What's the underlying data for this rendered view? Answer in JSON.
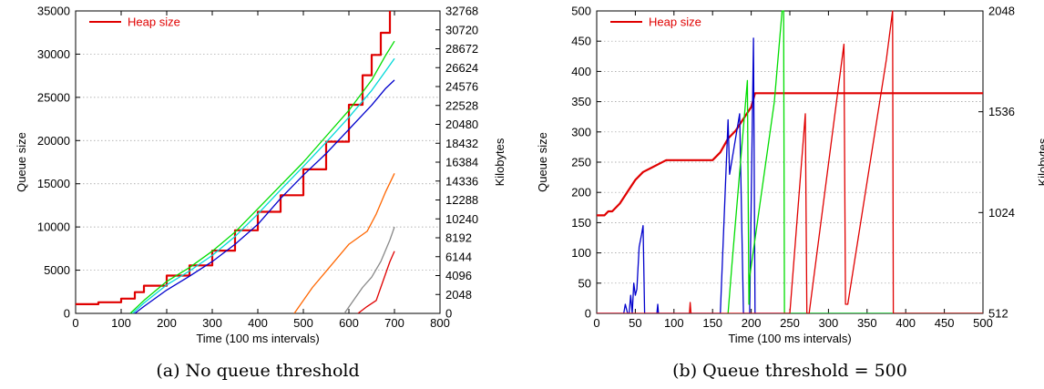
{
  "chart_data": [
    {
      "type": "line",
      "caption": "(a) No queue threshold",
      "xlabel": "Time (100 ms intervals)",
      "ylabel": "Queue size",
      "y2label": "Kilobytes",
      "xlim": [
        0,
        800
      ],
      "ylim": [
        0,
        35000
      ],
      "y2lim": [
        0,
        32768
      ],
      "xticks": [
        "0",
        "100",
        "200",
        "300",
        "400",
        "500",
        "600",
        "700",
        "800"
      ],
      "yticks": [
        "0",
        "5000",
        "10000",
        "15000",
        "20000",
        "25000",
        "30000",
        "35000"
      ],
      "y2ticks": [
        "0",
        "2048",
        "4096",
        "6144",
        "8192",
        "10240",
        "12288",
        "14336",
        "16384",
        "18432",
        "20480",
        "22528",
        "24576",
        "26624",
        "28672",
        "30720",
        "32768"
      ],
      "grid": "horizontal",
      "legend": {
        "position": "top-left",
        "entries": [
          "Heap size"
        ]
      },
      "series": [
        {
          "name": "Heap size",
          "color": "#e00000",
          "width": 2.2,
          "axis": "y2",
          "step": true,
          "x": [
            0,
            50,
            100,
            130,
            150,
            200,
            250,
            300,
            350,
            400,
            450,
            500,
            550,
            600,
            630,
            650,
            670,
            690
          ],
          "y": [
            1000,
            1200,
            1600,
            2300,
            3000,
            4100,
            5200,
            6800,
            9000,
            11000,
            12800,
            15600,
            18600,
            22600,
            25800,
            28000,
            30400,
            32768
          ]
        },
        {
          "color": "#00dd00",
          "width": 1.3,
          "x": [
            120,
            150,
            200,
            250,
            300,
            350,
            400,
            450,
            500,
            550,
            600,
            650,
            680,
            700
          ],
          "y": [
            0,
            1500,
            3700,
            5300,
            7200,
            9400,
            12100,
            14800,
            17500,
            20500,
            23500,
            27000,
            29800,
            31500
          ]
        },
        {
          "color": "#00d8d8",
          "width": 1.3,
          "x": [
            125,
            150,
            200,
            250,
            300,
            350,
            400,
            450,
            500,
            550,
            600,
            650,
            680,
            700
          ],
          "y": [
            0,
            1200,
            3300,
            4900,
            6700,
            8900,
            11500,
            14300,
            17000,
            19800,
            22700,
            25800,
            28000,
            29500
          ]
        },
        {
          "color": "#0000cc",
          "width": 1.3,
          "x": [
            130,
            150,
            200,
            250,
            300,
            350,
            400,
            450,
            500,
            550,
            600,
            650,
            680,
            700
          ],
          "y": [
            0,
            800,
            2700,
            4300,
            6000,
            8000,
            10300,
            13300,
            16000,
            18500,
            21300,
            24100,
            26000,
            27000
          ]
        },
        {
          "color": "#ff6600",
          "width": 1.3,
          "x": [
            480,
            520,
            560,
            600,
            640,
            660,
            680,
            700
          ],
          "y": [
            0,
            3000,
            5500,
            8000,
            9500,
            11500,
            14000,
            16200
          ]
        },
        {
          "color": "#888888",
          "width": 1.3,
          "x": [
            590,
            610,
            630,
            650,
            670,
            690,
            700
          ],
          "y": [
            0,
            1500,
            3000,
            4200,
            6000,
            8500,
            10000
          ]
        },
        {
          "color": "#e00000",
          "width": 1.3,
          "x": [
            620,
            640,
            660,
            670,
            690,
            700
          ],
          "y": [
            0,
            800,
            1500,
            3000,
            6000,
            7200
          ]
        }
      ]
    },
    {
      "type": "line",
      "caption": "(b) Queue threshold = 500",
      "xlabel": "Time (100 ms intervals)",
      "ylabel": "Queue size",
      "y2label": "Kilobytes",
      "xlim": [
        0,
        500
      ],
      "ylim": [
        0,
        500
      ],
      "y2lim": [
        512,
        2048
      ],
      "xticks": [
        "0",
        "50",
        "100",
        "150",
        "200",
        "250",
        "300",
        "350",
        "400",
        "450",
        "500"
      ],
      "yticks": [
        "0",
        "50",
        "100",
        "150",
        "200",
        "250",
        "300",
        "350",
        "400",
        "450",
        "500"
      ],
      "y2ticks": [
        "512",
        "1024",
        "1536",
        "2048"
      ],
      "grid": "horizontal",
      "legend": {
        "position": "top-left",
        "entries": [
          "Heap size"
        ]
      },
      "series": [
        {
          "name": "Heap size",
          "color": "#e00000",
          "width": 2.2,
          "axis": "y2",
          "x": [
            0,
            10,
            15,
            20,
            30,
            40,
            50,
            60,
            70,
            80,
            90,
            100,
            150,
            160,
            170,
            180,
            190,
            200,
            205,
            500
          ],
          "y": [
            1010,
            1010,
            1030,
            1030,
            1070,
            1130,
            1190,
            1230,
            1250,
            1270,
            1290,
            1290,
            1290,
            1330,
            1400,
            1440,
            1500,
            1560,
            1630,
            1630
          ]
        },
        {
          "color": "#0000cc",
          "width": 1.3,
          "x": [
            0,
            35,
            37,
            40,
            42,
            44,
            46,
            48,
            50,
            52,
            55,
            58,
            60,
            62,
            65,
            78,
            79,
            80,
            160,
            170,
            172,
            185,
            190,
            192,
            198,
            203,
            205,
            500
          ],
          "y": [
            0,
            0,
            15,
            0,
            0,
            30,
            0,
            50,
            30,
            40,
            110,
            130,
            145,
            0,
            0,
            0,
            15,
            0,
            0,
            320,
            230,
            330,
            0,
            0,
            0,
            455,
            0,
            0
          ]
        },
        {
          "color": "#00dd00",
          "width": 1.3,
          "x": [
            170,
            175,
            195,
            197,
            198,
            230,
            240,
            242,
            243,
            500
          ],
          "y": [
            0,
            80,
            385,
            15,
            60,
            350,
            500,
            500,
            0,
            0
          ]
        },
        {
          "color": "#e00000",
          "width": 1.3,
          "x": [
            0,
            120,
            121,
            122,
            250,
            270,
            272,
            275,
            320,
            322,
            325,
            375,
            383,
            384,
            500
          ],
          "y": [
            0,
            0,
            18,
            0,
            0,
            330,
            0,
            0,
            445,
            15,
            15,
            420,
            500,
            0,
            0
          ]
        }
      ]
    }
  ]
}
